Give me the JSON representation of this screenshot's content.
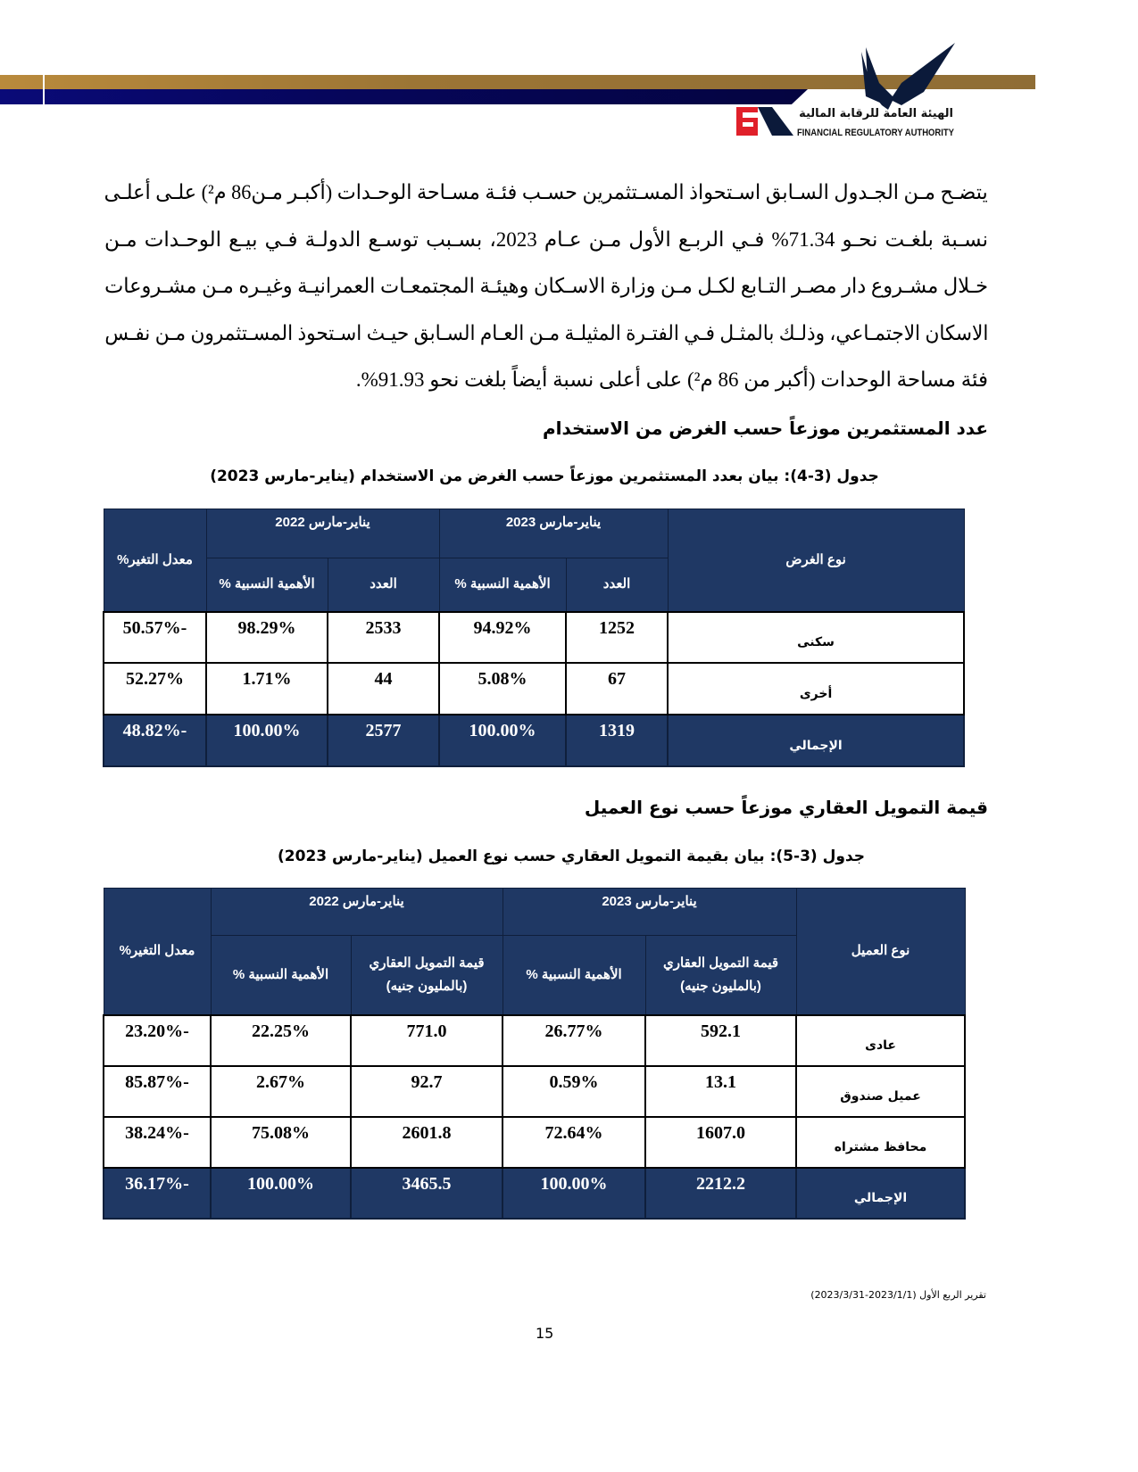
{
  "header": {
    "logo_arabic": "الهيئة العامة للرقابة المالية",
    "logo_english": "FINANCIAL REGULATORY AUTHORITY",
    "logo_mark": "FRA",
    "colors": {
      "gold": "#b98a3c",
      "navy": "#06065c",
      "red": "#e0202a"
    }
  },
  "paragraph": {
    "lines": [
      "يتضـح مـن الجـدول السـابق اسـتحواذ المسـتثمرين حسـب فئـة مسـاحة الوحـدات (أكبـر مـن86 م²) علـى أعلـى",
      "نسـبة بلغـت نحـو 71.34% فـي الربـع الأول مـن عـام 2023، بسـبب توسـع الدولـة فـي بيـع الوحـدات مـن",
      "خـلال مشـروع دار مصـر التـابع لكـل مـن وزارة الاسـكان وهيئـة المجتمعـات العمرانيـة وغيـره مـن مشـروعات",
      "الاسكان الاجتمـاعي، وذلـك بالمثـل فـي الفتـرة المثيلـة مـن العـام السـابق حيـث اسـتحوذ المسـتثمرون مـن نفـس",
      "فئة مساحة الوحدات (أكبر من 86 م²) على أعلى نسبة أيضاً بلغت نحو 91.93%."
    ]
  },
  "section1": {
    "heading": "عدد المستثمرين موزعاً حسب الغرض من الاستخدام",
    "caption": "جدول (3-4): بيان بعدد المستثمرين موزعاً حسب الغرض من الاستخدام (يناير-مارس 2023)",
    "headers": {
      "type": "نوع الغرض",
      "period_2023": "يناير-مارس 2023",
      "period_2022": "يناير-مارس 2022",
      "count": "العدد",
      "share": "الأهمية النسبية %",
      "change": "معدل التغير%"
    },
    "rows": [
      {
        "label": "سكنى",
        "c23": "1252",
        "p23": "94.92%",
        "c22": "2533",
        "p22": "98.29%",
        "chg": "-50.57%"
      },
      {
        "label": "أخرى",
        "c23": "67",
        "p23": "5.08%",
        "c22": "44",
        "p22": "1.71%",
        "chg": "52.27%"
      },
      {
        "label": "الإجمالي",
        "c23": "1319",
        "p23": "100.00%",
        "c22": "2577",
        "p22": "100.00%",
        "chg": "-48.82%"
      }
    ]
  },
  "section2": {
    "heading": "قيمة التمويل العقاري موزعاً حسب نوع العميل",
    "caption": "جدول (3-5): بيان بقيمة التمويل العقاري حسب نوع العميل (يناير-مارس 2023)",
    "headers": {
      "type": "نوع العميل",
      "period_2023": "يناير-مارس 2023",
      "period_2022": "يناير-مارس 2022",
      "value": "قيمة التمويل العقاري",
      "value_unit": "(بالمليون جنيه)",
      "share": "الأهمية النسبية %",
      "change": "معدل التغير%"
    },
    "rows": [
      {
        "label": "عادى",
        "v23": "592.1",
        "p23": "26.77%",
        "v22": "771.0",
        "p22": "22.25%",
        "chg": "-23.20%"
      },
      {
        "label": "عميل صندوق",
        "v23": "13.1",
        "p23": "0.59%",
        "v22": "92.7",
        "p22": "2.67%",
        "chg": "-85.87%"
      },
      {
        "label": "محافظ مشتراه",
        "v23": "1607.0",
        "p23": "72.64%",
        "v22": "2601.8",
        "p22": "75.08%",
        "chg": "-38.24%"
      },
      {
        "label": "الإجمالي",
        "v23": "2212.2",
        "p23": "100.00%",
        "v22": "3465.5",
        "p22": "100.00%",
        "chg": "-36.17%"
      }
    ]
  },
  "footer": {
    "report": "تقرير الربع الأول (2023/1/1-2023/3/31)",
    "page": "15"
  }
}
